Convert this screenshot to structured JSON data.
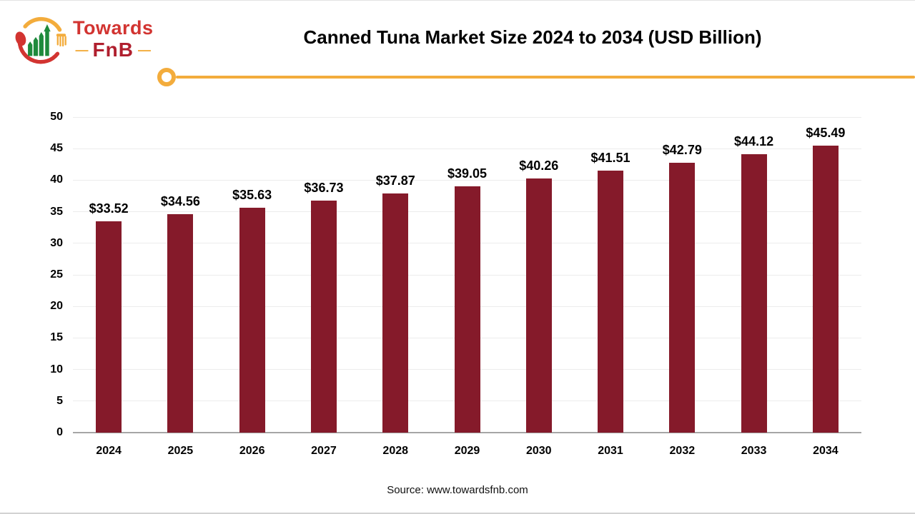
{
  "page": {
    "background": "#ffffff"
  },
  "logo": {
    "brand_top": "Towards",
    "brand_bottom": "FnB",
    "dash_left": "—",
    "dash_right": "—",
    "colors": {
      "red": "#d23431",
      "dark_red": "#b01f2e",
      "amber": "#f3ac3c",
      "green": "#1e8a3c"
    }
  },
  "header": {
    "title": "Canned Tuna Market Size 2024 to 2034 (USD Billion)"
  },
  "divider": {
    "color": "#f3ac3c"
  },
  "chart_data": {
    "type": "bar",
    "title": "Canned Tuna Market Size 2024 to 2034 (USD Billion)",
    "categories": [
      "2024",
      "2025",
      "2026",
      "2027",
      "2028",
      "2029",
      "2030",
      "2031",
      "2032",
      "2033",
      "2034"
    ],
    "values": [
      33.52,
      34.56,
      35.63,
      36.73,
      37.87,
      39.05,
      40.26,
      41.51,
      42.79,
      44.12,
      45.49
    ],
    "value_labels": [
      "$33.52",
      "$34.56",
      "$35.63",
      "$36.73",
      "$37.87",
      "$39.05",
      "$40.26",
      "$41.51",
      "$42.79",
      "$44.12",
      "$45.49"
    ],
    "currency_prefix": "$",
    "unit": "USD Billion",
    "xlabel": "",
    "ylabel": "",
    "ylim": [
      0,
      50
    ],
    "yticks": [
      0,
      5,
      10,
      15,
      20,
      25,
      30,
      35,
      40,
      45,
      50
    ],
    "grid": true,
    "legend": "none",
    "bar_color": "#851a2a",
    "gridline_color": "#ececec",
    "axis_line_color": "#a6a6a6",
    "label_color": "#000000"
  },
  "footer": {
    "source": "Source: www.towardsfnb.com"
  }
}
